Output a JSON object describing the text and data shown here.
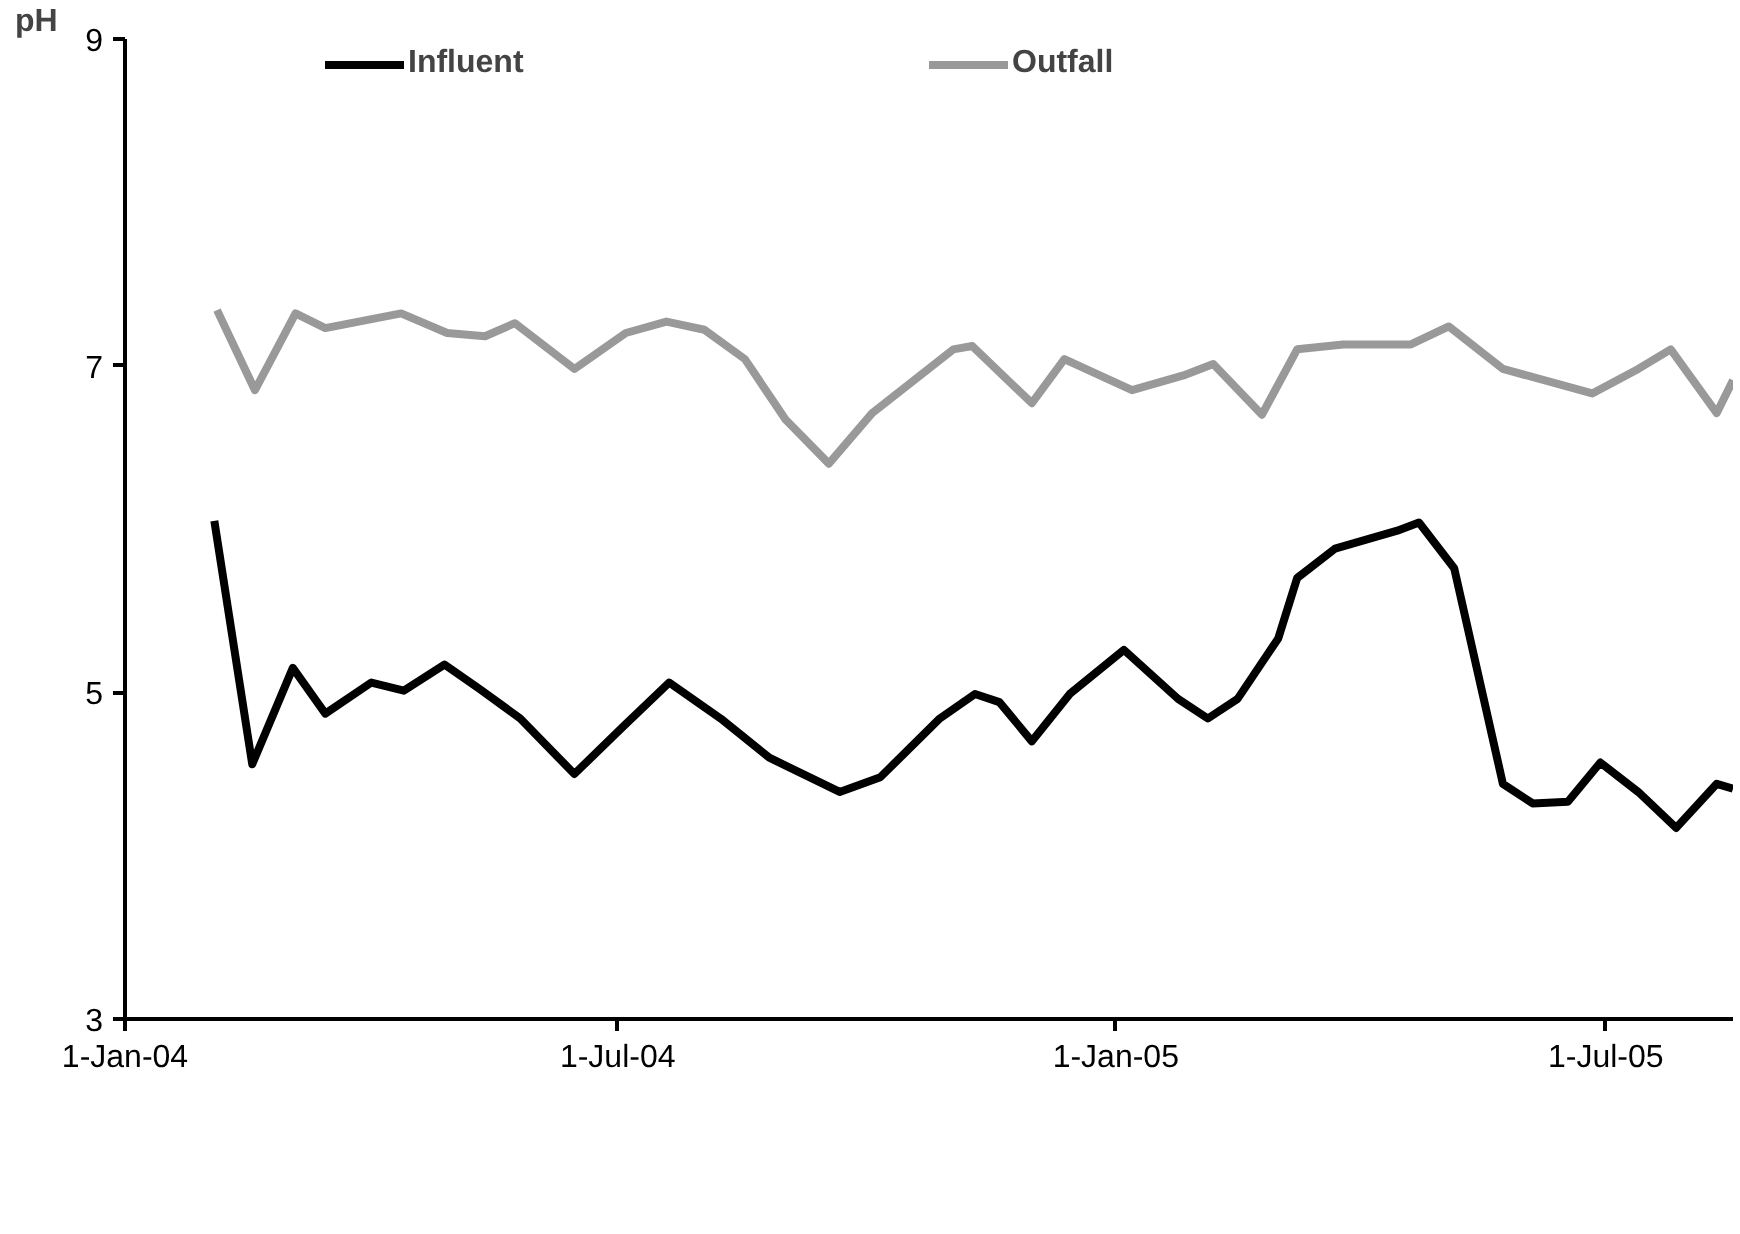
{
  "chart_data": {
    "type": "line",
    "ylabel": "pH",
    "xlim": [
      "2004-01-01",
      "2005-08-17"
    ],
    "ylim": [
      3,
      9
    ],
    "yticks": [
      3,
      5,
      7,
      9
    ],
    "xticks": [
      {
        "value": "2004-01-01",
        "label": "1-Jan-04"
      },
      {
        "value": "2004-07-01",
        "label": "1-Jul-04"
      },
      {
        "value": "2005-01-01",
        "label": "1-Jan-05"
      },
      {
        "value": "2005-07-01",
        "label": "1-Jul-05"
      }
    ],
    "grid": false,
    "legend": "top",
    "marker": "none",
    "line_style": "solid",
    "series": [
      {
        "name": "Influent",
        "color": "#000000",
        "x": [
          "2004-02-03",
          "2004-02-17",
          "2004-03-03",
          "2004-03-15",
          "2004-04-01",
          "2004-04-13",
          "2004-04-28",
          "2004-05-11",
          "2004-05-26",
          "2004-06-15",
          "2004-07-03",
          "2004-07-20",
          "2004-08-08",
          "2004-08-26",
          "2004-09-21",
          "2004-10-06",
          "2004-10-28",
          "2004-11-10",
          "2004-11-19",
          "2004-12-01",
          "2004-12-15",
          "2005-01-04",
          "2005-01-24",
          "2005-02-04",
          "2005-02-15",
          "2005-03-02",
          "2005-03-09",
          "2005-03-23",
          "2005-04-15",
          "2005-04-23",
          "2005-05-06",
          "2005-05-24",
          "2005-06-04",
          "2005-06-17",
          "2005-06-29",
          "2005-07-13",
          "2005-07-27",
          "2005-08-11",
          "2005-08-17"
        ],
        "values": [
          6.05,
          4.56,
          5.15,
          4.87,
          5.06,
          5.01,
          5.17,
          5.02,
          4.84,
          4.5,
          4.79,
          5.06,
          4.84,
          4.6,
          4.39,
          4.48,
          4.84,
          4.99,
          4.94,
          4.7,
          4.99,
          5.26,
          4.96,
          4.84,
          4.96,
          5.33,
          5.7,
          5.88,
          5.99,
          6.04,
          5.76,
          4.44,
          4.32,
          4.33,
          4.57,
          4.39,
          4.17,
          4.44,
          4.41
        ]
      },
      {
        "name": "Outfall",
        "color": "#999999",
        "x": [
          "2004-02-04",
          "2004-02-18",
          "2004-03-04",
          "2004-03-15",
          "2004-04-12",
          "2004-04-29",
          "2004-05-13",
          "2004-05-24",
          "2004-06-15",
          "2004-07-04",
          "2004-07-19",
          "2004-08-02",
          "2004-08-17",
          "2004-09-01",
          "2004-09-17",
          "2004-10-03",
          "2004-11-02",
          "2004-11-09",
          "2004-12-01",
          "2004-12-13",
          "2005-01-07",
          "2005-01-26",
          "2005-02-06",
          "2005-02-24",
          "2005-03-09",
          "2005-03-26",
          "2005-04-20",
          "2005-05-04",
          "2005-05-24",
          "2005-06-26",
          "2005-07-13",
          "2005-07-25",
          "2005-08-11",
          "2005-08-17"
        ],
        "values": [
          7.34,
          6.85,
          7.32,
          7.23,
          7.32,
          7.2,
          7.18,
          7.26,
          6.98,
          7.2,
          7.27,
          7.22,
          7.04,
          6.67,
          6.4,
          6.71,
          7.1,
          7.12,
          6.77,
          7.04,
          6.85,
          6.94,
          7.01,
          6.7,
          7.1,
          7.13,
          7.13,
          7.24,
          6.98,
          6.83,
          6.98,
          7.1,
          6.71,
          6.91
        ]
      }
    ]
  }
}
